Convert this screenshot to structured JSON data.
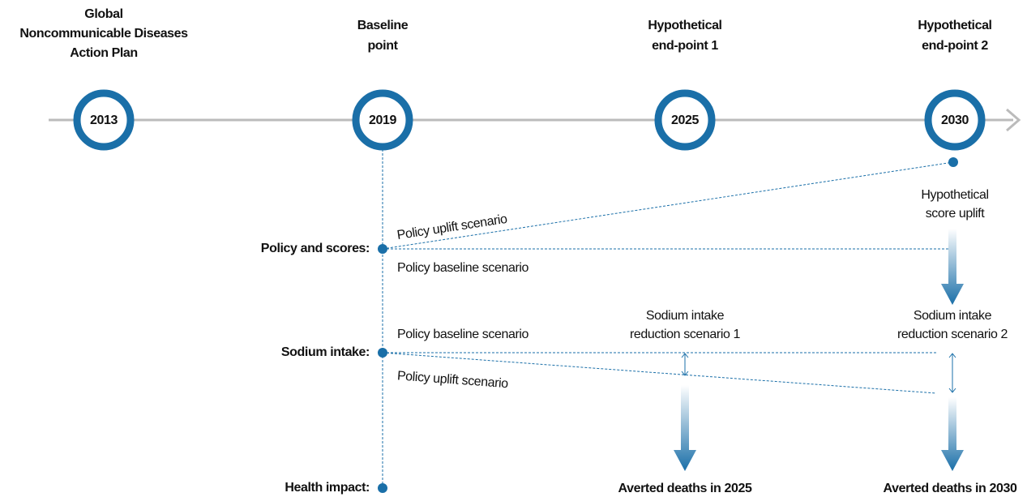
{
  "milestones": [
    {
      "label": [
        "Global",
        "Noncommunicable Diseases",
        "Action Plan"
      ],
      "year": "2013"
    },
    {
      "label": [
        "Baseline",
        "point"
      ],
      "year": "2019"
    },
    {
      "label": [
        "Hypothetical",
        "end-point 1"
      ],
      "year": "2025"
    },
    {
      "label": [
        "Hypothetical",
        "end-point 2"
      ],
      "year": "2030"
    }
  ],
  "rows": [
    "Policy and scores:",
    "Sodium intake:",
    "Health impact:"
  ],
  "policy": {
    "uplift": "Policy uplift scenario",
    "baseline": "Policy baseline scenario",
    "result": [
      "Hypothetical",
      "score uplift"
    ]
  },
  "sodium": {
    "baseline": "Policy baseline scenario",
    "uplift": "Policy uplift scenario",
    "scenario1": [
      "Sodium intake",
      "reduction scenario 1"
    ],
    "scenario2": [
      "Sodium intake",
      "reduction scenario 2"
    ]
  },
  "health": {
    "result1": "Averted deaths in 2025",
    "result2": "Averted deaths in 2030"
  }
}
